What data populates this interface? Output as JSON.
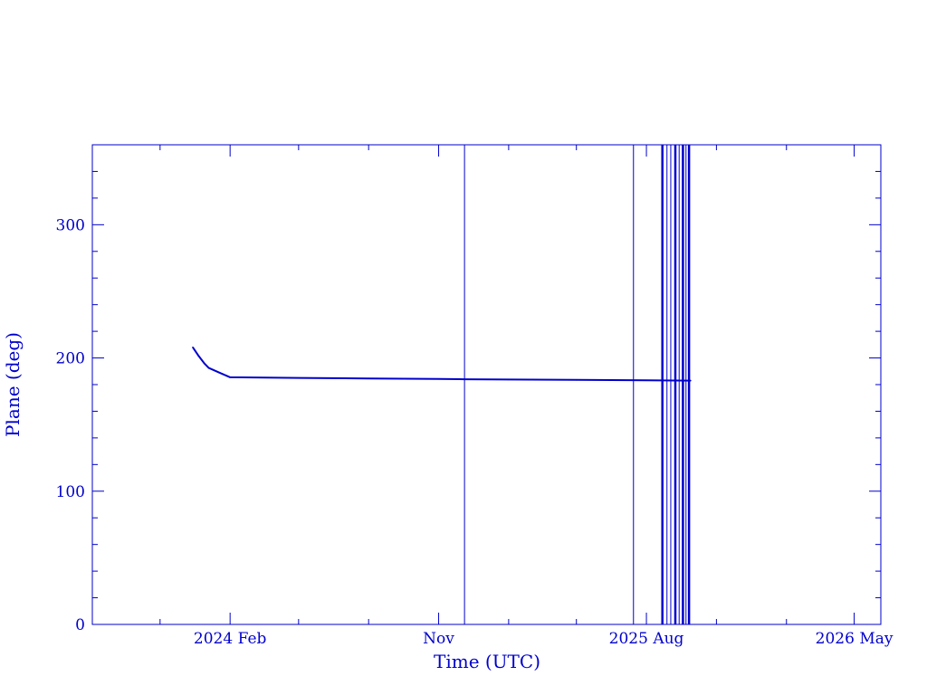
{
  "chart_data": {
    "type": "line",
    "xlabel": "Time (UTC)",
    "ylabel": "Plane (deg)",
    "ylim": [
      0,
      360
    ],
    "xlim": [
      "2023-08-04",
      "2026-06-05"
    ],
    "grid": false,
    "colors": {
      "axis": "#0000cc",
      "line": "#0000cc"
    },
    "x_ticks": [
      {
        "date": "2024-02-01",
        "label": "2024 Feb"
      },
      {
        "date": "2024-11-01",
        "label": "Nov"
      },
      {
        "date": "2025-08-01",
        "label": "2025 Aug"
      },
      {
        "date": "2026-05-01",
        "label": "2026 May"
      }
    ],
    "x_minor_ticks": [
      "2023-11-01",
      "2024-05-01",
      "2024-08-01",
      "2025-02-01",
      "2025-05-01",
      "2025-11-01",
      "2026-02-01"
    ],
    "y_ticks": [
      0,
      100,
      200,
      300
    ],
    "y_minor_step": 20,
    "series": [
      {
        "points": [
          [
            "2023-12-14",
            208
          ],
          [
            "2023-12-21",
            202
          ],
          [
            "2023-12-29",
            196
          ],
          [
            "2024-01-04",
            192.5
          ],
          [
            "2024-01-18",
            189
          ],
          [
            "2024-02-01",
            185.5
          ],
          [
            "2024-05-01",
            185
          ],
          [
            "2024-08-01",
            184.6
          ],
          [
            "2024-11-01",
            184.3
          ],
          [
            "2024-12-05",
            184
          ],
          [
            "2025-02-01",
            183.8
          ],
          [
            "2025-05-01",
            183.5
          ],
          [
            "2025-08-01",
            183.2
          ],
          [
            "2025-09-28",
            183
          ]
        ]
      }
    ],
    "wraps": [
      {
        "date": "2024-12-05",
        "thick": false
      },
      {
        "date": "2025-07-15",
        "thick": false
      },
      {
        "date": "2025-08-22",
        "thick": true
      },
      {
        "date": "2025-08-28",
        "thick": false
      },
      {
        "date": "2025-09-02",
        "thick": false
      },
      {
        "date": "2025-09-08",
        "thick": true
      },
      {
        "date": "2025-09-13",
        "thick": false
      },
      {
        "date": "2025-09-18",
        "thick": true
      },
      {
        "date": "2025-09-22",
        "thick": false
      },
      {
        "date": "2025-09-26",
        "thick": true
      }
    ]
  }
}
